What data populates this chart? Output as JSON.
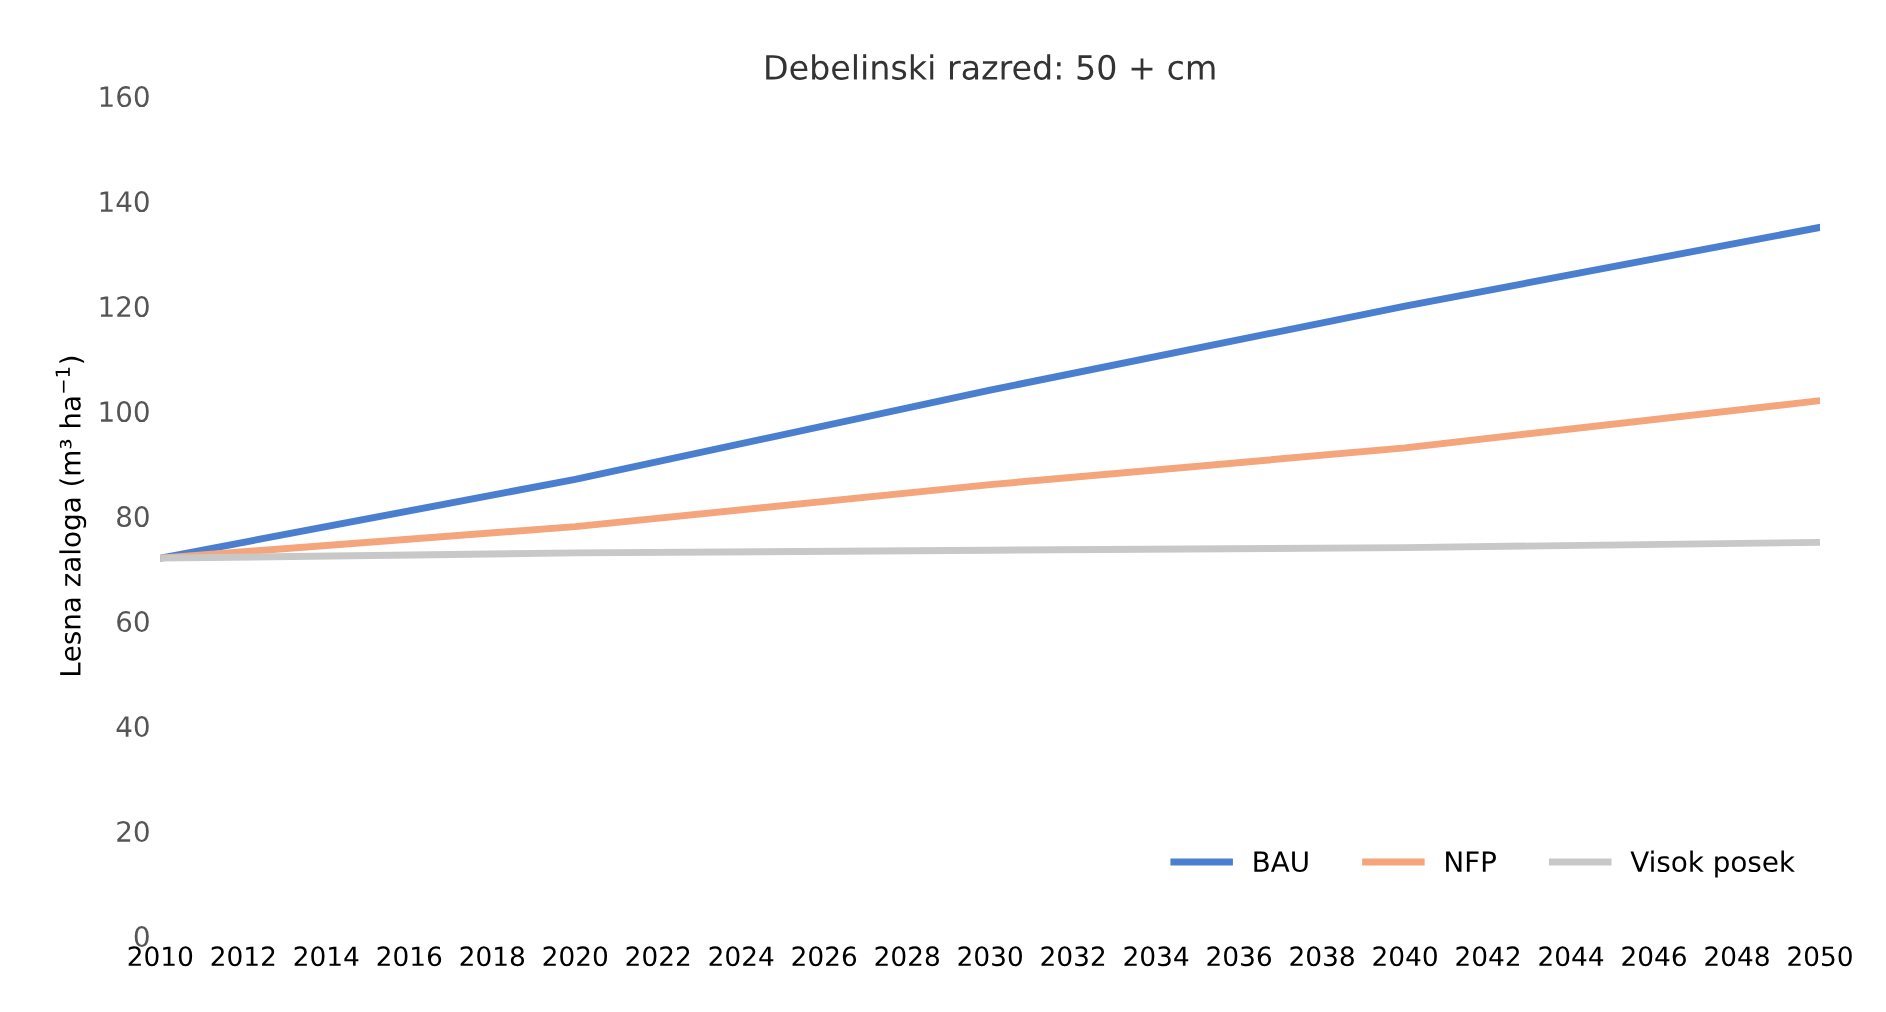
{
  "chart_data": {
    "type": "line",
    "title": "Debelinski razred: 50 + cm",
    "ylabel": "Lesna zaloga (m³ ha$^{−1}$)",
    "x": [
      2010,
      2020,
      2030,
      2040,
      2050
    ],
    "series": [
      {
        "name": "BAU",
        "color": "#4a7fd0",
        "values": [
          72,
          87,
          104,
          120,
          135
        ]
      },
      {
        "name": "NFP",
        "color": "#f4a57c",
        "values": [
          72,
          78,
          86,
          93,
          102
        ]
      },
      {
        "name": "Visok posek",
        "color": "#c8c8c8",
        "values": [
          72,
          73,
          73.5,
          74,
          75
        ]
      }
    ],
    "xlim": [
      2010,
      2050
    ],
    "xticks": [
      2010,
      2012,
      2014,
      2016,
      2018,
      2020,
      2022,
      2024,
      2026,
      2028,
      2030,
      2032,
      2034,
      2036,
      2038,
      2040,
      2042,
      2044,
      2046,
      2048,
      2050
    ],
    "ylim": [
      0,
      160
    ],
    "yticks": [
      0,
      20,
      40,
      60,
      80,
      100,
      120,
      140,
      160
    ],
    "grid": false,
    "legend": "bottom right",
    "marker": "none",
    "line_style": "solid"
  }
}
